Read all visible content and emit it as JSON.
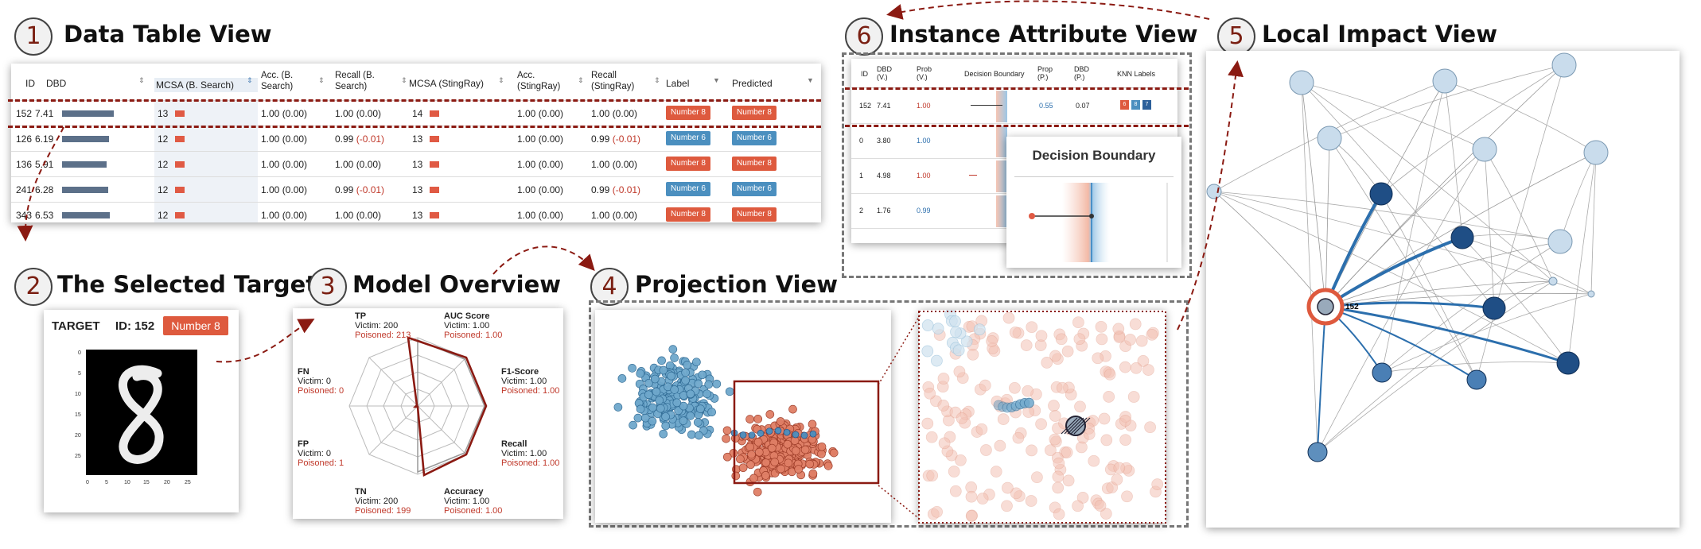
{
  "badges": [
    "1",
    "2",
    "3",
    "4",
    "5",
    "6"
  ],
  "titles": {
    "v1": "Data Table View",
    "v2": "The Selected Target",
    "v3": "Model Overview",
    "v4": "Projection View",
    "v5": "Local Impact View",
    "v6": "Instance Attribute View"
  },
  "colors": {
    "red": "#de5a3e",
    "blue": "#4b8fbf",
    "dark_red": "#8b1a12",
    "navy": "#1f4e85"
  },
  "table": {
    "headers": {
      "id": "ID",
      "dbd": "DBD",
      "mcsa_b": "MCSA (B. Search)",
      "acc_b": "Acc. (B. Search)",
      "recall_b": "Recall (B. Search)",
      "mcsa_s": "MCSA (StingRay)",
      "acc_s": "Acc. (StingRay)",
      "recall_s": "Recall (StingRay)",
      "label": "Label",
      "predicted": "Predicted"
    },
    "rows": [
      {
        "id": "152",
        "dbd": "7.41",
        "dbd_frac": 0.9,
        "mcsa_b": "13",
        "acc_b": "1.00 (0.00)",
        "recall_b": "1.00 (0.00)",
        "recall_b_delta": "",
        "mcsa_s": "14",
        "acc_s": "1.00 (0.00)",
        "recall_s": "1.00 (0.00)",
        "recall_s_delta": "",
        "label": "Number 8",
        "label_color": "red",
        "pred": "Number 8",
        "pred_color": "red"
      },
      {
        "id": "126",
        "dbd": "6.19",
        "dbd_frac": 0.82,
        "mcsa_b": "12",
        "acc_b": "1.00 (0.00)",
        "recall_b": "0.99",
        "recall_b_delta": "(-0.01)",
        "mcsa_s": "13",
        "acc_s": "1.00 (0.00)",
        "recall_s": "0.99",
        "recall_s_delta": "(-0.01)",
        "label": "Number 6",
        "label_color": "blue",
        "pred": "Number 6",
        "pred_color": "blue"
      },
      {
        "id": "136",
        "dbd": "5.91",
        "dbd_frac": 0.78,
        "mcsa_b": "12",
        "acc_b": "1.00 (0.00)",
        "recall_b": "1.00 (0.00)",
        "recall_b_delta": "",
        "mcsa_s": "13",
        "acc_s": "1.00 (0.00)",
        "recall_s": "1.00 (0.00)",
        "recall_s_delta": "",
        "label": "Number 8",
        "label_color": "red",
        "pred": "Number 8",
        "pred_color": "red"
      },
      {
        "id": "241",
        "dbd": "6.28",
        "dbd_frac": 0.8,
        "mcsa_b": "12",
        "acc_b": "1.00 (0.00)",
        "recall_b": "0.99",
        "recall_b_delta": "(-0.01)",
        "mcsa_s": "13",
        "acc_s": "1.00 (0.00)",
        "recall_s": "0.99",
        "recall_s_delta": "(-0.01)",
        "label": "Number 6",
        "label_color": "blue",
        "pred": "Number 6",
        "pred_color": "blue"
      },
      {
        "id": "343",
        "dbd": "6.53",
        "dbd_frac": 0.84,
        "mcsa_b": "12",
        "acc_b": "1.00 (0.00)",
        "recall_b": "1.00 (0.00)",
        "recall_b_delta": "",
        "mcsa_s": "13",
        "acc_s": "1.00 (0.00)",
        "recall_s": "1.00 (0.00)",
        "recall_s_delta": "",
        "label": "Number 8",
        "label_color": "red",
        "pred": "Number 8",
        "pred_color": "red"
      }
    ]
  },
  "target": {
    "label": "TARGET",
    "id_text": "ID: 152",
    "class_tag": "Number 8",
    "xticks": [
      "0",
      "5",
      "10",
      "15",
      "20",
      "25"
    ],
    "yticks": [
      "0",
      "5",
      "10",
      "15",
      "20",
      "25"
    ]
  },
  "radar": {
    "tp": {
      "name": "TP",
      "victim": "Victim: 200",
      "poisoned": "Poisoned: 213"
    },
    "auc": {
      "name": "AUC Score",
      "victim": "Victim: 1.00",
      "poisoned": "Poisoned: 1.00"
    },
    "f1": {
      "name": "F1-Score",
      "victim": "Victim: 1.00",
      "poisoned": "Poisoned: 1.00"
    },
    "recall": {
      "name": "Recall",
      "victim": "Victim: 1.00",
      "poisoned": "Poisoned: 1.00"
    },
    "accuracy": {
      "name": "Accuracy",
      "victim": "Victim: 1.00",
      "poisoned": "Poisoned: 1.00"
    },
    "tn": {
      "name": "TN",
      "victim": "Victim: 200",
      "poisoned": "Poisoned: 199"
    },
    "fp": {
      "name": "FP",
      "victim": "Victim: 0",
      "poisoned": "Poisoned: 1"
    },
    "fn": {
      "name": "FN",
      "victim": "Victim: 0",
      "poisoned": "Poisoned: 0"
    }
  },
  "instance": {
    "headers": {
      "id": "ID",
      "dbd": "DBD (V.)",
      "prob": "Prob (V.)",
      "db": "Decision Boundary",
      "prop": "Prop (P.)",
      "dbdp": "DBD (P.)",
      "knn": "KNN Labels"
    },
    "rows": [
      {
        "id": "152",
        "dbd": "7.41",
        "prob": "1.00",
        "prop": "0.55",
        "dbdp": "0.07",
        "prob_color": "red"
      },
      {
        "id": "0",
        "dbd": "3.80",
        "prob": "1.00",
        "prop": "",
        "dbdp": "",
        "prob_color": "blue"
      },
      {
        "id": "1",
        "dbd": "4.98",
        "prob": "1.00",
        "prop": "",
        "dbdp": "",
        "prob_color": "red"
      },
      {
        "id": "2",
        "dbd": "1.76",
        "prob": "0.99",
        "prop": "",
        "dbdp": "",
        "prob_color": "blue"
      }
    ],
    "knn": [
      "6",
      "8",
      "7"
    ],
    "popup_title": "Decision Boundary"
  },
  "local_impact": {
    "target_label": "152"
  }
}
